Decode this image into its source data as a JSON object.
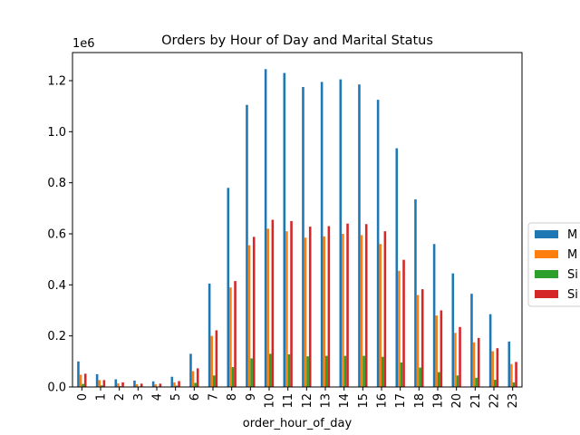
{
  "chart_data": {
    "type": "bar",
    "title": "Orders by Hour of Day and Marital Status",
    "xlabel": "order_hour_of_day",
    "ylabel": "",
    "y_offset_label": "1e6",
    "ylim": [
      0,
      1310000
    ],
    "yticks": [
      0,
      200000,
      400000,
      600000,
      800000,
      1000000,
      1200000
    ],
    "ytick_labels": [
      "0.0",
      "0.2",
      "0.4",
      "0.6",
      "0.8",
      "1.0",
      "1.2"
    ],
    "grid": false,
    "legend_position": "center-right (partially clipped)",
    "categories": [
      "0",
      "1",
      "2",
      "3",
      "4",
      "5",
      "6",
      "7",
      "8",
      "9",
      "10",
      "11",
      "12",
      "13",
      "14",
      "15",
      "16",
      "17",
      "18",
      "19",
      "20",
      "21",
      "22",
      "23"
    ],
    "series": [
      {
        "name": "M",
        "color": "#1f77b4",
        "values": [
          100000,
          50000,
          30000,
          25000,
          22000,
          40000,
          130000,
          405000,
          780000,
          1105000,
          1245000,
          1230000,
          1175000,
          1195000,
          1205000,
          1185000,
          1125000,
          935000,
          735000,
          560000,
          445000,
          365000,
          285000,
          178000
        ]
      },
      {
        "name": "M",
        "color": "#ff7f0e",
        "values": [
          48000,
          27000,
          14000,
          11000,
          10000,
          18000,
          62000,
          200000,
          390000,
          555000,
          620000,
          610000,
          585000,
          590000,
          600000,
          595000,
          560000,
          455000,
          360000,
          280000,
          212000,
          175000,
          140000,
          90000
        ]
      },
      {
        "name": "Si",
        "color": "#2ca02c",
        "values": [
          12000,
          6000,
          3000,
          2000,
          2000,
          5000,
          16000,
          45000,
          78000,
          112000,
          130000,
          128000,
          120000,
          122000,
          122000,
          122000,
          118000,
          96000,
          76000,
          58000,
          45000,
          36000,
          28000,
          18000
        ]
      },
      {
        "name": "Si",
        "color": "#d62728",
        "values": [
          52000,
          27000,
          18000,
          13000,
          13000,
          23000,
          73000,
          222000,
          415000,
          588000,
          655000,
          650000,
          628000,
          630000,
          640000,
          638000,
          610000,
          498000,
          383000,
          300000,
          235000,
          192000,
          152000,
          98000
        ]
      }
    ]
  }
}
